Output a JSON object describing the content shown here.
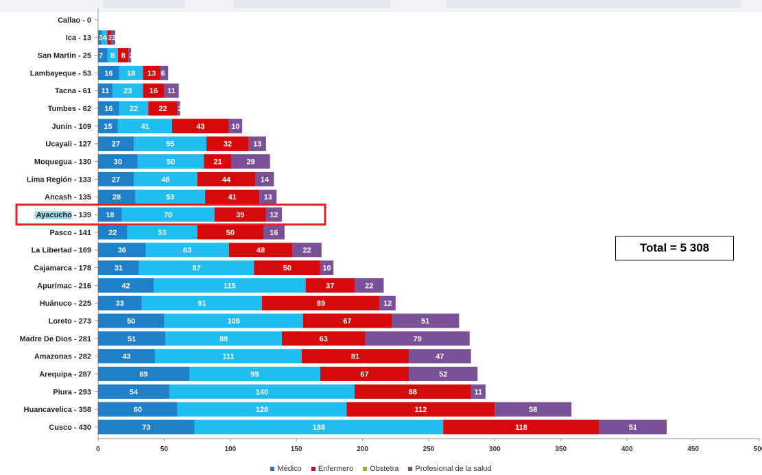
{
  "chart_data": {
    "type": "bar",
    "orientation": "horizontal",
    "stacked": true,
    "title": "",
    "xlabel": "",
    "ylabel": "",
    "xlim": [
      0,
      500
    ],
    "x_ticks": [
      0,
      50,
      100,
      150,
      200,
      250,
      300,
      350,
      400,
      450,
      500
    ],
    "grid": false,
    "legend_position": "bottom",
    "categories": [
      "Callao - 0",
      "Ica - 13",
      "San Martin - 25",
      "Lambayeque - 53",
      "Tacna - 61",
      "Tumbes - 62",
      "Junín - 109",
      "Ucayali - 127",
      "Moquegua - 130",
      "Lima Región - 133",
      "Ancash - 135",
      "Ayacucho - 139",
      "Pasco - 141",
      "La Libertad - 169",
      "Cajamarca - 178",
      "Apurímac - 216",
      "Huánuco - 225",
      "Loreto - 273",
      "Madre De Dios - 281",
      "Amazonas - 282",
      "Arequipa - 287",
      "Piura - 293",
      "Huancavelica - 358",
      "Cusco - 430"
    ],
    "series": [
      {
        "name": "Médico",
        "color": "#1f7fc9",
        "values": [
          0,
          3,
          7,
          16,
          11,
          16,
          15,
          27,
          30,
          27,
          28,
          18,
          22,
          36,
          31,
          42,
          33,
          50,
          51,
          43,
          69,
          54,
          60,
          73
        ]
      },
      {
        "name": "Enfermero",
        "color": "#1fbdf0",
        "values": [
          0,
          4,
          8,
          18,
          23,
          22,
          41,
          55,
          50,
          48,
          53,
          70,
          53,
          63,
          87,
          115,
          91,
          105,
          88,
          111,
          99,
          140,
          128,
          188
        ]
      },
      {
        "name": "Obstetra",
        "color": "#d60a0a",
        "values": [
          0,
          3,
          8,
          13,
          16,
          22,
          43,
          32,
          21,
          44,
          41,
          39,
          50,
          48,
          50,
          37,
          89,
          67,
          63,
          81,
          67,
          88,
          112,
          118
        ]
      },
      {
        "name": "Profesional de la salud",
        "color": "#7a5196",
        "values": [
          0,
          3,
          2,
          6,
          11,
          2,
          10,
          13,
          29,
          14,
          13,
          12,
          16,
          22,
          10,
          22,
          12,
          51,
          79,
          47,
          52,
          11,
          58,
          51
        ]
      }
    ],
    "highlight": {
      "category": "Ayacucho - 139",
      "color": "#e8202a"
    }
  },
  "legend": {
    "items": [
      {
        "label": "Médico",
        "color": "#2f6db5"
      },
      {
        "label": "Enfermero",
        "color": "#c0121c"
      },
      {
        "label": "Obstetra",
        "color": "#7fb53a"
      },
      {
        "label": "Profesional de la salud",
        "color": "#7a5196"
      }
    ]
  },
  "total_box": {
    "text": "Total = 5 308"
  }
}
